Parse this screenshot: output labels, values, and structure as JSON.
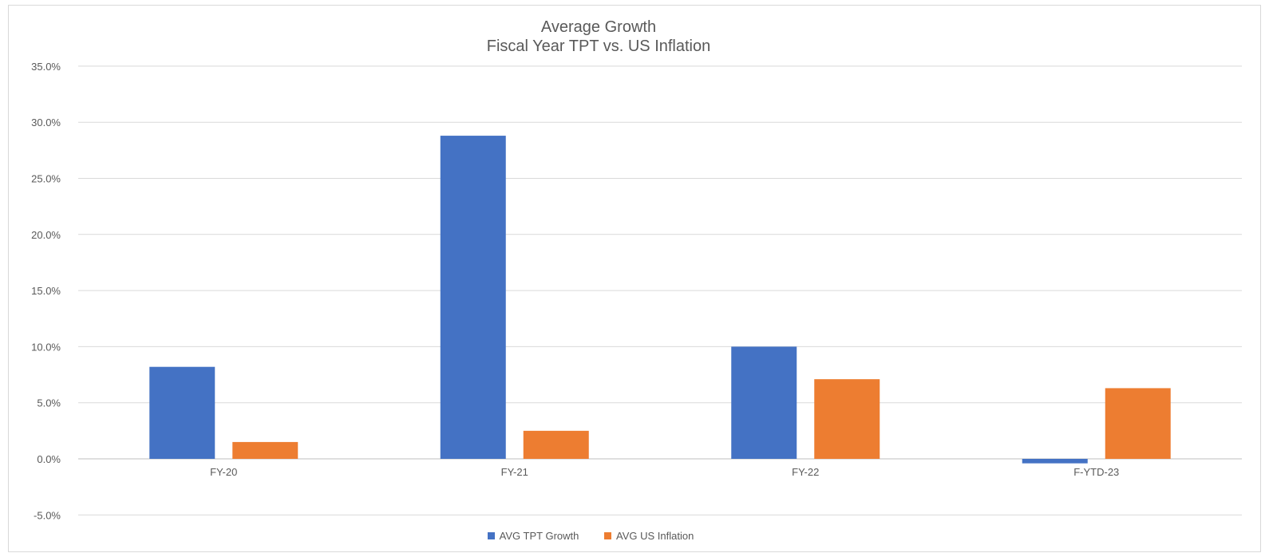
{
  "chart_data": {
    "type": "bar",
    "title": "Average Growth",
    "subtitle": "Fiscal Year TPT vs. US Inflation",
    "categories": [
      "FY-20",
      "FY-21",
      "FY-22",
      "F-YTD-23"
    ],
    "series": [
      {
        "name": "AVG TPT Growth",
        "color": "#4472C4",
        "values": [
          8.2,
          28.8,
          10.0,
          -0.4
        ]
      },
      {
        "name": "AVG US Inflation",
        "color": "#ED7D31",
        "values": [
          1.5,
          2.5,
          7.1,
          6.3
        ]
      }
    ],
    "ylim": [
      -5,
      35
    ],
    "yticks": [
      "-5.0%",
      "0.0%",
      "5.0%",
      "10.0%",
      "15.0%",
      "20.0%",
      "25.0%",
      "30.0%",
      "35.0%"
    ],
    "ytick_values": [
      -5,
      0,
      5,
      10,
      15,
      20,
      25,
      30,
      35
    ],
    "grid": true,
    "legend": "bottom"
  }
}
